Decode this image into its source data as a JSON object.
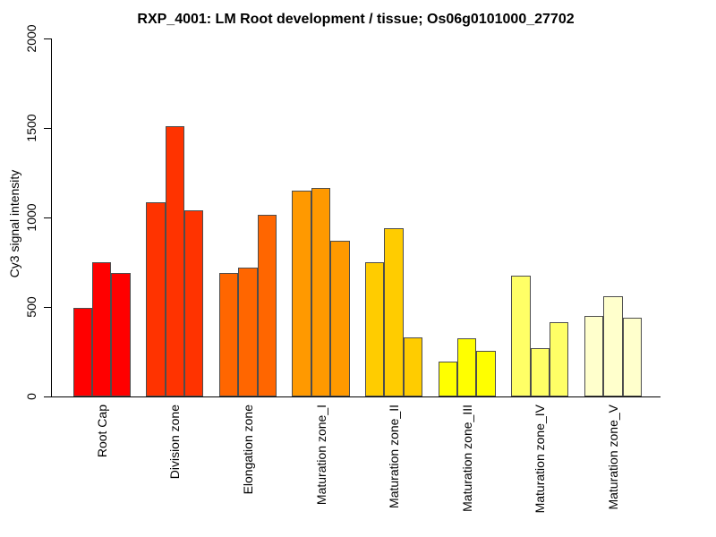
{
  "chart_data": {
    "type": "bar",
    "title": "RXP_4001: LM Root development / tissue; Os06g0101000_27702",
    "xlabel": "",
    "ylabel": "Cy3 signal intensity",
    "ylim": [
      0,
      2000
    ],
    "yticks": [
      0,
      500,
      1000,
      1500,
      2000
    ],
    "grid": false,
    "legend_position": "none",
    "bars_per_group": 3,
    "background_color": "#ffffff",
    "axis_color": "#000000",
    "bar_border_color": "#4d4d4d",
    "categories": [
      "Root Cap",
      "Division zone",
      "Elongation zone",
      "Maturation zone_I",
      "Maturation zone_II",
      "Maturation zone_III",
      "Maturation zone_IV",
      "Maturation zone_V"
    ],
    "groups": [
      {
        "label": "Root Cap",
        "color": "#FF0000",
        "values": [
          493,
          752,
          690
        ]
      },
      {
        "label": "Division zone",
        "color": "#FF3300",
        "values": [
          1085,
          1510,
          1042
        ]
      },
      {
        "label": "Elongation zone",
        "color": "#FF6600",
        "values": [
          692,
          722,
          1016
        ]
      },
      {
        "label": "Maturation zone_I",
        "color": "#FF9900",
        "values": [
          1150,
          1163,
          868
        ]
      },
      {
        "label": "Maturation zone_II",
        "color": "#FFCC00",
        "values": [
          750,
          938,
          330
        ]
      },
      {
        "label": "Maturation zone_III",
        "color": "#FFFF00",
        "values": [
          193,
          326,
          254
        ]
      },
      {
        "label": "Maturation zone_IV",
        "color": "#FFFF66",
        "values": [
          676,
          270,
          416
        ]
      },
      {
        "label": "Maturation zone_V",
        "color": "#FFFFCC",
        "values": [
          450,
          560,
          438
        ]
      }
    ]
  }
}
